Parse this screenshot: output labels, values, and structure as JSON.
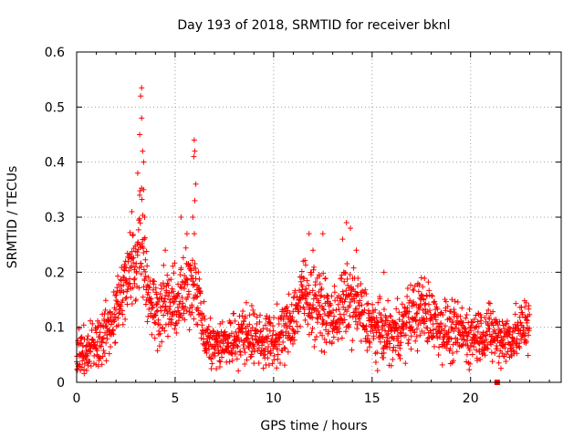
{
  "chart_data": {
    "type": "scatter",
    "title": "Day 193 of 2018, SRMTID for receiver bknl",
    "xlabel": "GPS time / hours",
    "ylabel": "SRMTID / TECUs",
    "xlim": [
      0,
      24.6
    ],
    "ylim": [
      0,
      0.6
    ],
    "xticks": [
      0,
      5,
      10,
      15,
      20
    ],
    "xtick_labels": [
      "0",
      "5",
      "10",
      "15",
      "20"
    ],
    "yticks": [
      0,
      0.1,
      0.2,
      0.3,
      0.4,
      0.5,
      0.6
    ],
    "ytick_labels": [
      "0",
      "0.1",
      "0.2",
      "0.3",
      "0.4",
      "0.5",
      "0.6"
    ],
    "grid": true,
    "marker": "+",
    "color": "#ff0000",
    "series": [
      {
        "name": "SRMTID",
        "envelope_x": [
          0,
          0.5,
          1.0,
          1.5,
          2.0,
          2.5,
          3.0,
          3.3,
          3.6,
          4.0,
          4.5,
          5.0,
          5.5,
          6.0,
          6.5,
          7.0,
          7.5,
          8.0,
          8.5,
          9.0,
          9.5,
          10.0,
          10.5,
          11.0,
          11.5,
          12.0,
          12.5,
          13.0,
          13.5,
          14.0,
          14.5,
          15.0,
          15.5,
          16.0,
          16.5,
          17.0,
          17.5,
          18.0,
          18.5,
          19.0,
          19.5,
          20.0,
          20.5,
          21.0,
          21.5,
          22.0,
          22.5,
          23.0
        ],
        "envelope_y": [
          0.05,
          0.06,
          0.07,
          0.09,
          0.13,
          0.18,
          0.22,
          0.28,
          0.17,
          0.13,
          0.14,
          0.14,
          0.16,
          0.2,
          0.08,
          0.065,
          0.07,
          0.08,
          0.09,
          0.085,
          0.075,
          0.075,
          0.09,
          0.12,
          0.16,
          0.15,
          0.13,
          0.11,
          0.14,
          0.15,
          0.12,
          0.1,
          0.09,
          0.085,
          0.1,
          0.12,
          0.13,
          0.12,
          0.1,
          0.09,
          0.09,
          0.085,
          0.09,
          0.09,
          0.08,
          0.08,
          0.09,
          0.12
        ],
        "spread": 0.045,
        "peaks": [
          {
            "x": 3.3,
            "y": 0.535
          },
          {
            "x": 3.25,
            "y": 0.52
          },
          {
            "x": 3.3,
            "y": 0.48
          },
          {
            "x": 3.2,
            "y": 0.45
          },
          {
            "x": 3.35,
            "y": 0.42
          },
          {
            "x": 3.4,
            "y": 0.4
          },
          {
            "x": 3.1,
            "y": 0.38
          },
          {
            "x": 3.4,
            "y": 0.35
          },
          {
            "x": 3.2,
            "y": 0.34
          },
          {
            "x": 2.8,
            "y": 0.31
          },
          {
            "x": 3.45,
            "y": 0.3
          },
          {
            "x": 5.97,
            "y": 0.44
          },
          {
            "x": 6.0,
            "y": 0.42
          },
          {
            "x": 5.95,
            "y": 0.41
          },
          {
            "x": 6.05,
            "y": 0.36
          },
          {
            "x": 6.0,
            "y": 0.33
          },
          {
            "x": 5.9,
            "y": 0.3
          },
          {
            "x": 5.3,
            "y": 0.3
          },
          {
            "x": 5.6,
            "y": 0.27
          },
          {
            "x": 4.5,
            "y": 0.24
          },
          {
            "x": 11.8,
            "y": 0.27
          },
          {
            "x": 12.5,
            "y": 0.27
          },
          {
            "x": 13.7,
            "y": 0.29
          },
          {
            "x": 13.9,
            "y": 0.28
          },
          {
            "x": 13.5,
            "y": 0.26
          },
          {
            "x": 14.2,
            "y": 0.24
          },
          {
            "x": 12.0,
            "y": 0.24
          },
          {
            "x": 15.6,
            "y": 0.2
          },
          {
            "x": 17.5,
            "y": 0.19
          },
          {
            "x": 11.5,
            "y": 0.22
          }
        ],
        "outlier_square": {
          "x": 21.35,
          "y": 0.0
        }
      }
    ]
  }
}
